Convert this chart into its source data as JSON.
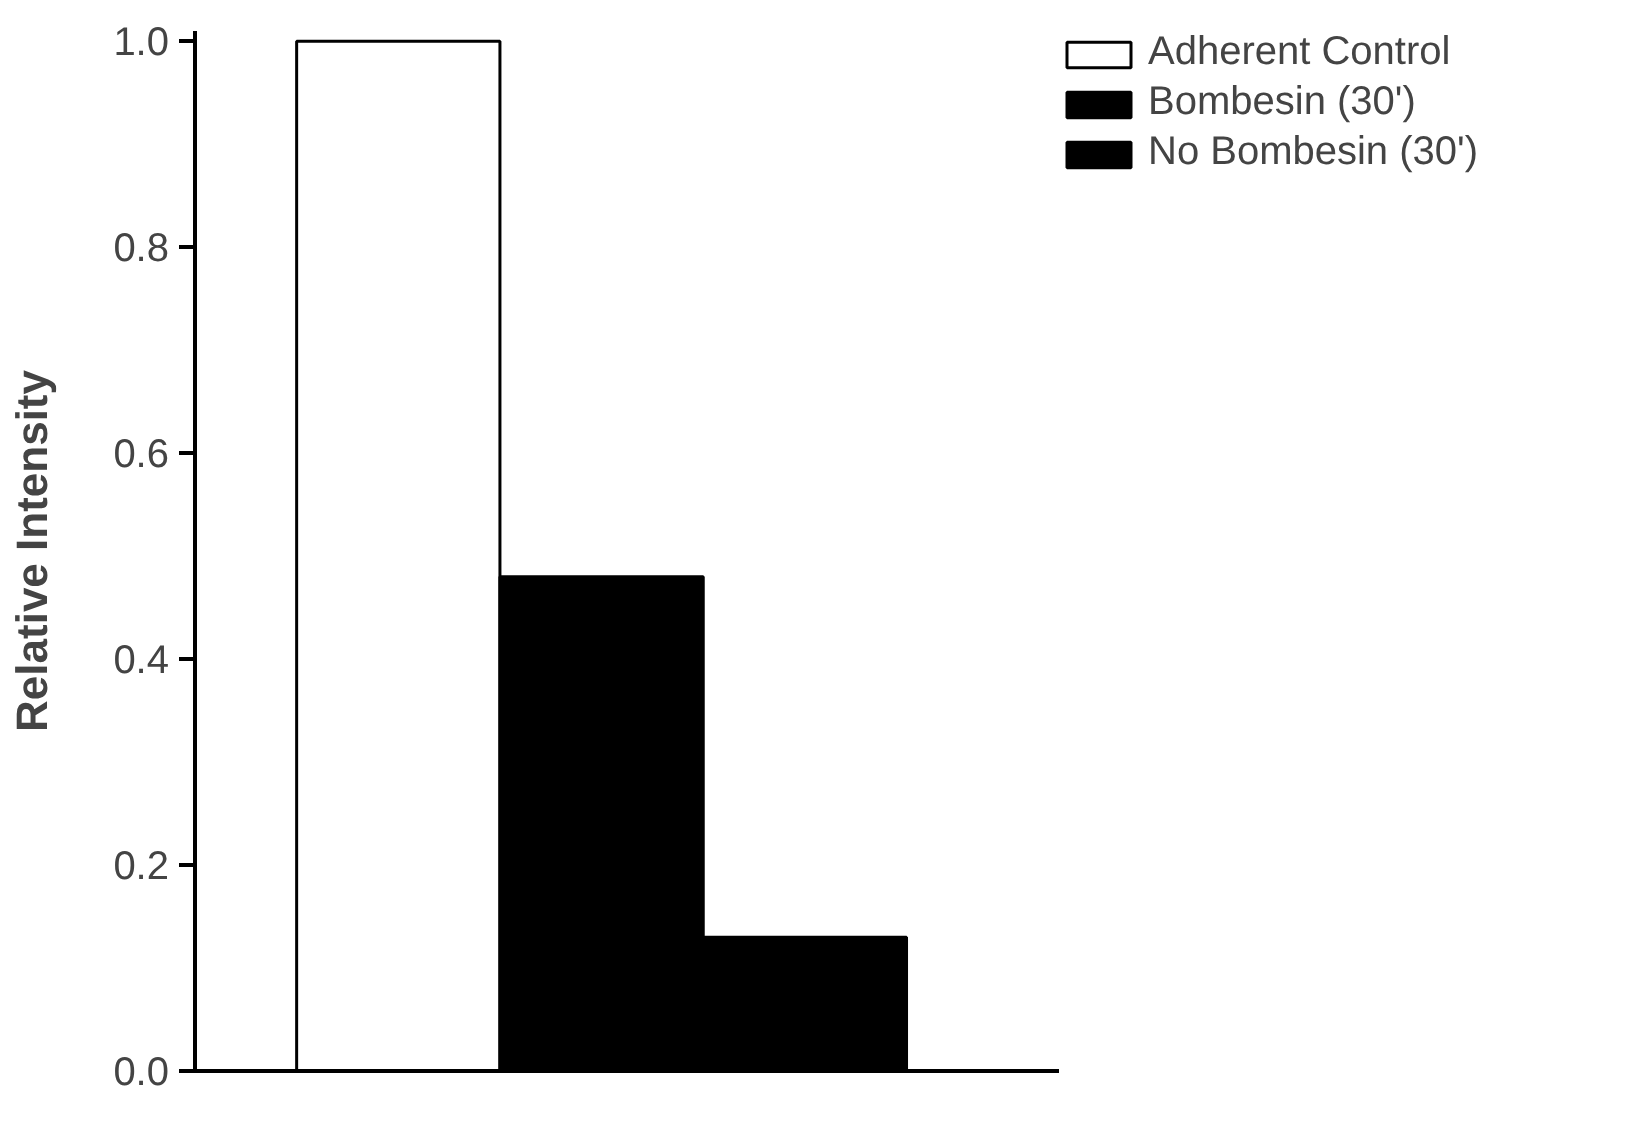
{
  "chart_data": {
    "type": "bar",
    "ylabel": "Relative Intensity",
    "categories": [
      null,
      null,
      null
    ],
    "series": [
      {
        "name": "Adherent Control",
        "color": "#ffffff",
        "values": [
          1.0,
          null,
          null
        ]
      },
      {
        "name": "Bombesin (30')",
        "color": "#000000",
        "values": [
          null,
          0.48,
          null
        ]
      },
      {
        "name": "No Bombesin (30')",
        "color": "#000000",
        "values": [
          null,
          null,
          0.13
        ]
      }
    ],
    "ylim": [
      0,
      1.0
    ],
    "yticks": [
      {
        "value": 0,
        "label": "0.0"
      },
      {
        "value": 0.2,
        "label": "0.2"
      },
      {
        "value": 0.4,
        "label": "0.4"
      },
      {
        "value": 0.6,
        "label": "0.6"
      },
      {
        "value": 0.8,
        "label": "0.8"
      },
      {
        "value": 1.0,
        "label": "1.0"
      }
    ],
    "legend": "top right",
    "grid": false
  }
}
